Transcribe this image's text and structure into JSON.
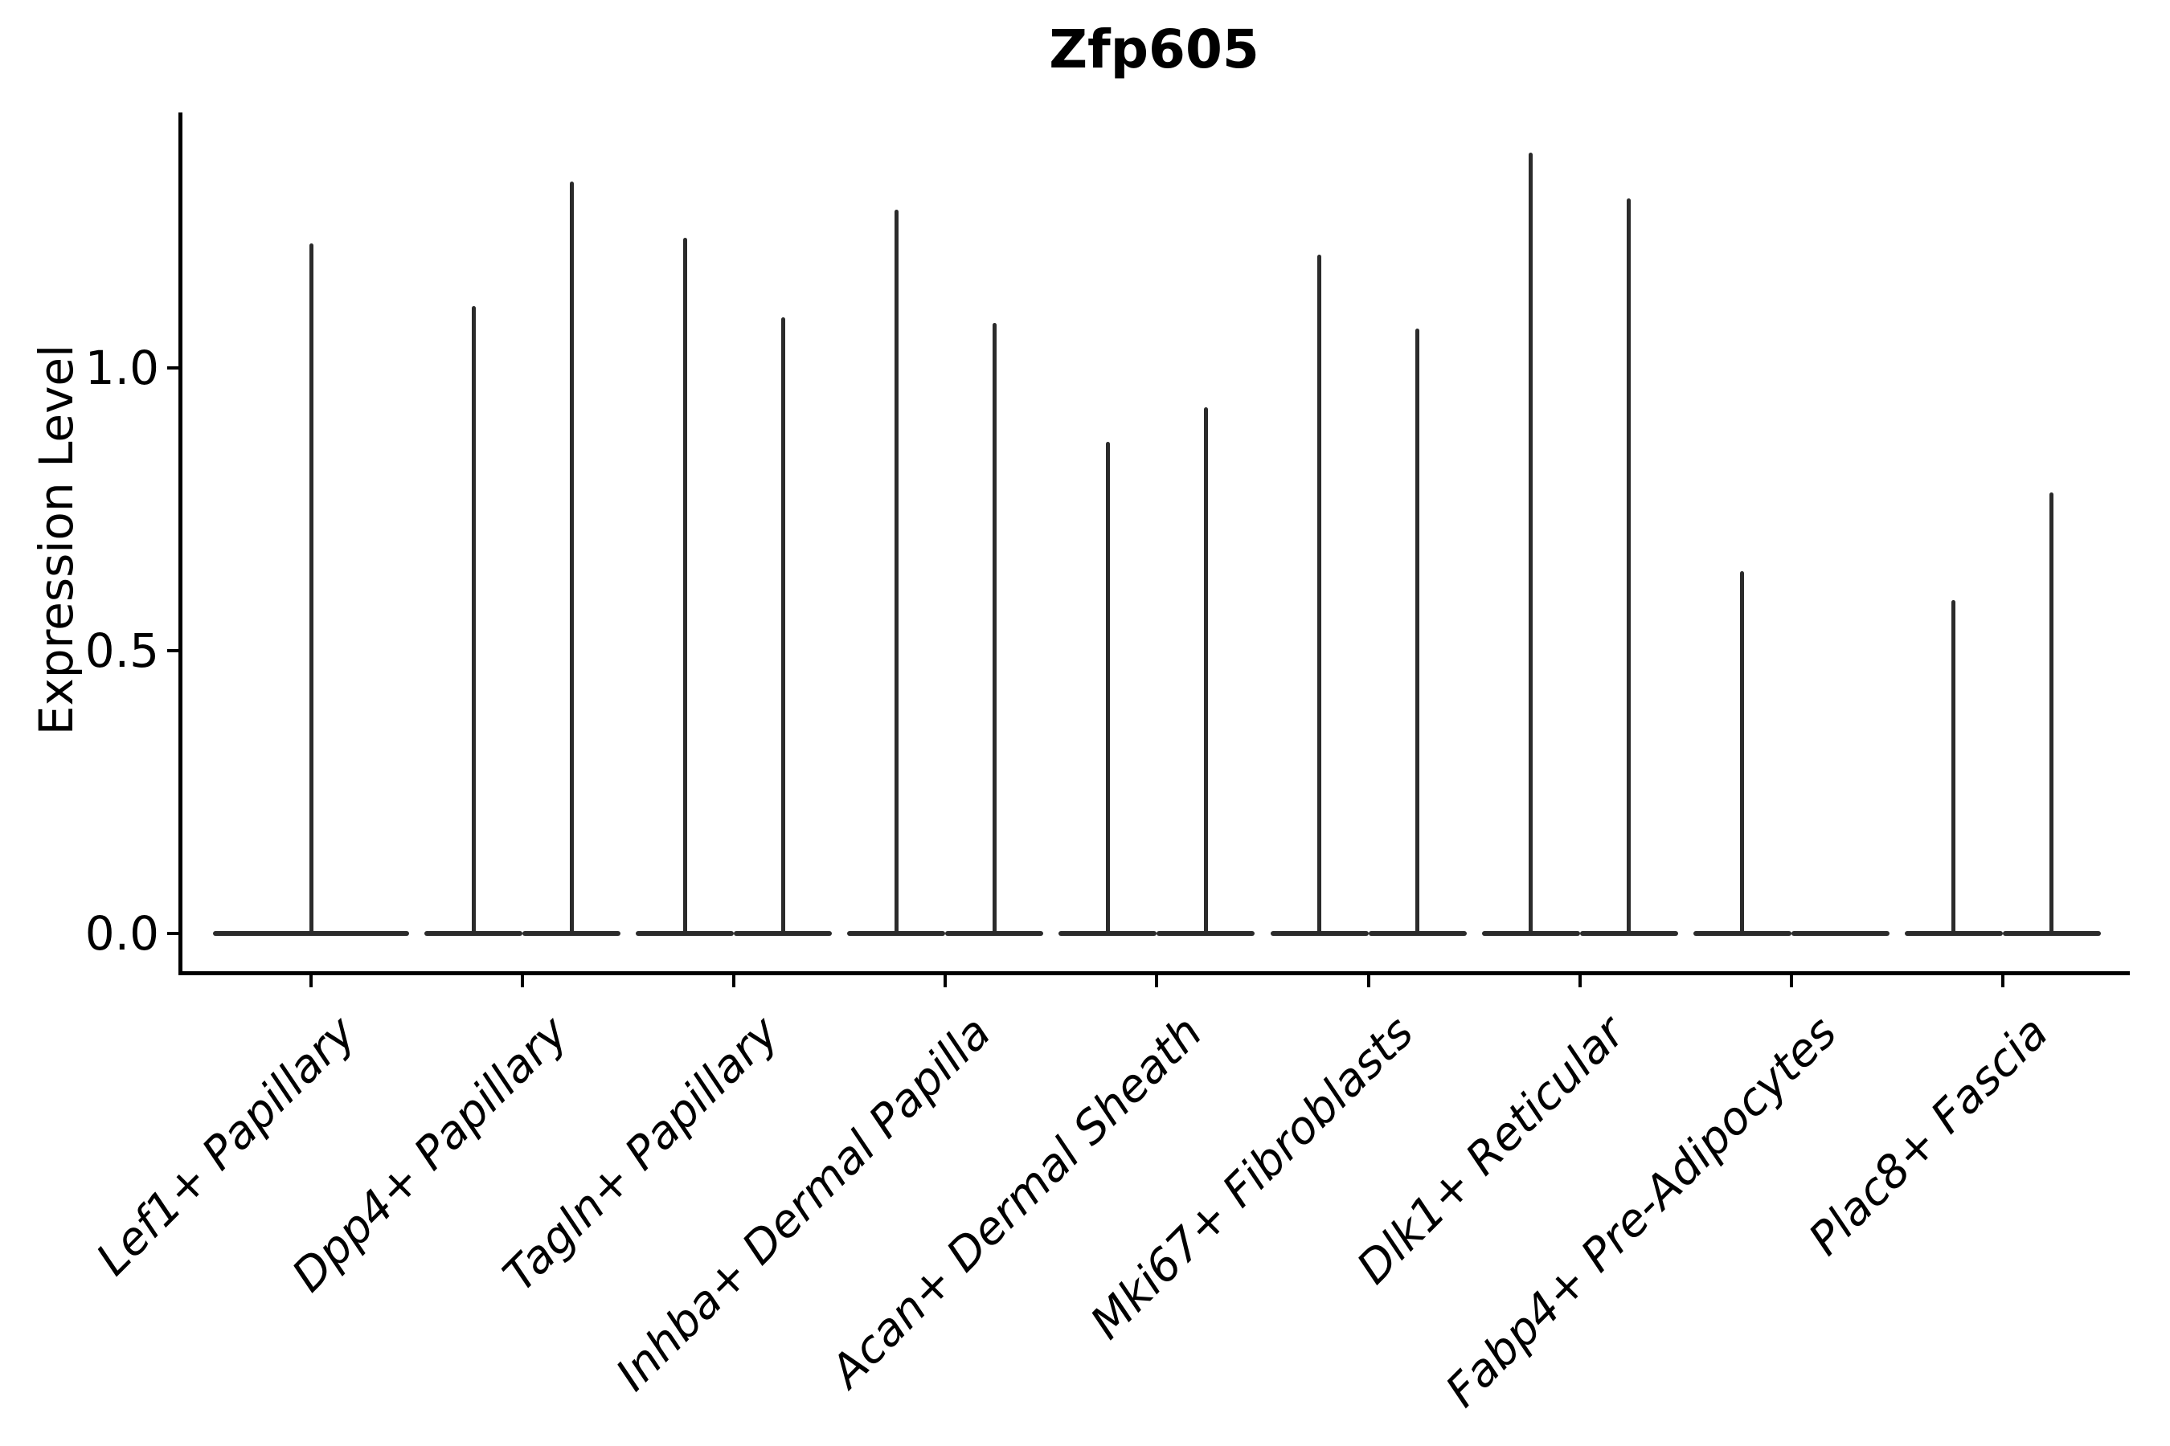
{
  "chart_data": {
    "type": "violin",
    "title": "Zfp605",
    "xlabel": "",
    "ylabel": "Expression Level",
    "ytick_values": [
      0.0,
      0.5,
      1.0
    ],
    "ytick_labels": [
      "0.0",
      "0.5",
      "1.0"
    ],
    "ylim": [
      -0.07,
      1.45
    ],
    "grid": false,
    "legend_position": "none",
    "style_note": "split violin plot; distributions collapsed at 0 with thin vertical spike up to the max expression value; single centered full-width violin where only one group is present",
    "categories": [
      "Lef1+ Papillary",
      "Dpp4+ Papillary",
      "Tagln+ Papillary",
      "Inhba+ Dermal Papilla",
      "Acan+ Dermal Sheath",
      "Mki67+ Fibroblasts",
      "Dlk1+ Reticular",
      "Fabp4+ Pre-Adipocytes",
      "Plac8+ Fascia"
    ],
    "violin_max_per_category": [
      [
        1.22
      ],
      [
        1.11,
        1.33
      ],
      [
        1.23,
        1.09
      ],
      [
        1.28,
        1.08
      ],
      [
        0.87,
        0.93
      ],
      [
        1.2,
        1.07
      ],
      [
        1.38,
        1.3
      ],
      [
        0.64,
        0.0
      ],
      [
        0.59,
        0.78
      ]
    ],
    "baseline_value": 0.0
  },
  "colors": {
    "background": "#ffffff",
    "axis": "#000000",
    "text": "#000000",
    "violin": "#2b2b2b"
  }
}
